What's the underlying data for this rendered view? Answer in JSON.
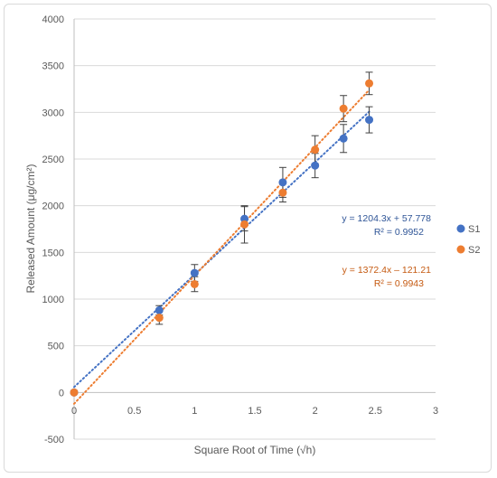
{
  "chart_data": {
    "type": "scatter",
    "xlabel": "Square Root of Time (√h)",
    "ylabel": "Released Amount (μg/cm²)",
    "xlim": [
      0,
      3
    ],
    "ylim": [
      -500,
      4000
    ],
    "x_ticks": [
      "0",
      "0.5",
      "1",
      "1.5",
      "2",
      "2.5",
      "3"
    ],
    "y_ticks": [
      "-500",
      "0",
      "500",
      "1000",
      "1500",
      "2000",
      "2500",
      "3000",
      "3500",
      "4000"
    ],
    "grid": "horizontal",
    "legend_position": "right",
    "series": [
      {
        "name": "S1",
        "color": "#4472c4",
        "x": [
          0,
          0.707,
          1,
          1.414,
          1.732,
          2,
          2.236,
          2.449
        ],
        "y": [
          0,
          880,
          1280,
          1860,
          2250,
          2430,
          2720,
          2920
        ],
        "error": [
          0,
          50,
          90,
          130,
          160,
          130,
          150,
          140
        ],
        "trendline": {
          "slope": 1204.3,
          "intercept": 57.778,
          "equation": "y = 1204.3x + 57.778",
          "r2": "R² = 0.9952"
        }
      },
      {
        "name": "S2",
        "color": "#ed7d31",
        "x": [
          0,
          0.707,
          1,
          1.414,
          1.732,
          2,
          2.236,
          2.449
        ],
        "y": [
          0,
          800,
          1160,
          1800,
          2140,
          2600,
          3040,
          3310
        ],
        "error": [
          0,
          70,
          80,
          200,
          100,
          150,
          140,
          120
        ],
        "trendline": {
          "slope": 1372.4,
          "intercept": -121.21,
          "equation": "y = 1372.4x – 121.21",
          "r2": "R² = 0.9943"
        }
      }
    ]
  }
}
